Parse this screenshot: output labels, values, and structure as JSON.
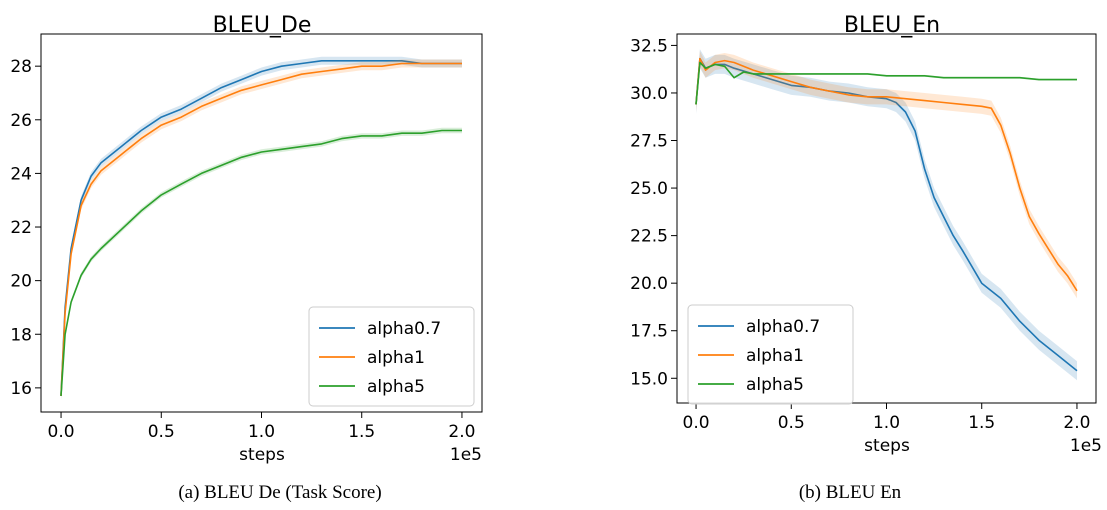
{
  "colors": {
    "alpha0.7": "#1f77b4",
    "alpha1": "#ff7f0e",
    "alpha5": "#2ca02c"
  },
  "chart_data": [
    {
      "type": "line",
      "title": "BLEU_De",
      "caption": "(a) BLEU De (Task Score)",
      "xlabel": "steps",
      "x_offset_label": "1e5",
      "ylabel": "",
      "xlim": [
        -0.1,
        2.1
      ],
      "ylim": [
        15.1,
        29.2
      ],
      "x_ticks": [
        0.0,
        0.5,
        1.0,
        1.5,
        2.0
      ],
      "x_tick_labels": [
        "0.0",
        "0.5",
        "1.0",
        "1.5",
        "2.0"
      ],
      "y_ticks": [
        16,
        18,
        20,
        22,
        24,
        26,
        28
      ],
      "y_tick_labels": [
        "16",
        "18",
        "20",
        "22",
        "24",
        "26",
        "28"
      ],
      "grid": false,
      "legend_position": "lower-right",
      "series": [
        {
          "name": "alpha0.7",
          "x": [
            0.0,
            0.02,
            0.05,
            0.1,
            0.15,
            0.2,
            0.3,
            0.4,
            0.5,
            0.6,
            0.7,
            0.8,
            0.9,
            1.0,
            1.1,
            1.2,
            1.3,
            1.4,
            1.5,
            1.6,
            1.7,
            1.8,
            1.9,
            2.0
          ],
          "y": [
            15.7,
            19.0,
            21.2,
            23.0,
            23.9,
            24.4,
            25.0,
            25.6,
            26.1,
            26.4,
            26.8,
            27.2,
            27.5,
            27.8,
            28.0,
            28.1,
            28.2,
            28.2,
            28.2,
            28.2,
            28.2,
            28.1,
            28.1,
            28.1
          ],
          "band": 0.15
        },
        {
          "name": "alpha1",
          "x": [
            0.0,
            0.02,
            0.05,
            0.1,
            0.15,
            0.2,
            0.3,
            0.4,
            0.5,
            0.6,
            0.7,
            0.8,
            0.9,
            1.0,
            1.1,
            1.2,
            1.3,
            1.4,
            1.5,
            1.6,
            1.7,
            1.8,
            1.9,
            2.0
          ],
          "y": [
            15.7,
            18.8,
            21.0,
            22.8,
            23.6,
            24.1,
            24.7,
            25.3,
            25.8,
            26.1,
            26.5,
            26.8,
            27.1,
            27.3,
            27.5,
            27.7,
            27.8,
            27.9,
            28.0,
            28.0,
            28.1,
            28.1,
            28.1,
            28.1
          ],
          "band": 0.15
        },
        {
          "name": "alpha5",
          "x": [
            0.0,
            0.02,
            0.05,
            0.1,
            0.15,
            0.2,
            0.3,
            0.4,
            0.5,
            0.6,
            0.7,
            0.8,
            0.9,
            1.0,
            1.1,
            1.2,
            1.3,
            1.4,
            1.5,
            1.6,
            1.7,
            1.8,
            1.9,
            2.0
          ],
          "y": [
            15.7,
            18.0,
            19.2,
            20.2,
            20.8,
            21.2,
            21.9,
            22.6,
            23.2,
            23.6,
            24.0,
            24.3,
            24.6,
            24.8,
            24.9,
            25.0,
            25.1,
            25.3,
            25.4,
            25.4,
            25.5,
            25.5,
            25.6,
            25.6
          ],
          "band": 0.1
        }
      ]
    },
    {
      "type": "line",
      "title": "BLEU_En",
      "caption": "(b) BLEU En",
      "xlabel": "steps",
      "x_offset_label": "1e5",
      "ylabel": "",
      "xlim": [
        -0.1,
        2.1
      ],
      "ylim": [
        13.7,
        33.1
      ],
      "x_ticks": [
        0.0,
        0.5,
        1.0,
        1.5,
        2.0
      ],
      "x_tick_labels": [
        "0.0",
        "0.5",
        "1.0",
        "1.5",
        "2.0"
      ],
      "y_ticks": [
        15.0,
        17.5,
        20.0,
        22.5,
        25.0,
        27.5,
        30.0,
        32.5
      ],
      "y_tick_labels": [
        "15.0",
        "17.5",
        "20.0",
        "22.5",
        "25.0",
        "27.5",
        "30.0",
        "32.5"
      ],
      "grid": false,
      "legend_position": "lower-left",
      "series": [
        {
          "name": "alpha0.7",
          "x": [
            0.0,
            0.02,
            0.05,
            0.1,
            0.15,
            0.2,
            0.3,
            0.4,
            0.5,
            0.6,
            0.7,
            0.8,
            0.9,
            1.0,
            1.05,
            1.1,
            1.15,
            1.2,
            1.25,
            1.3,
            1.35,
            1.4,
            1.5,
            1.6,
            1.7,
            1.8,
            1.9,
            2.0
          ],
          "y": [
            29.4,
            31.8,
            31.3,
            31.5,
            31.5,
            31.3,
            31.0,
            30.7,
            30.4,
            30.3,
            30.1,
            30.0,
            29.8,
            29.7,
            29.5,
            29.0,
            28.0,
            26.0,
            24.5,
            23.5,
            22.5,
            21.7,
            20.0,
            19.2,
            18.0,
            17.0,
            16.2,
            15.4
          ],
          "band": 0.5
        },
        {
          "name": "alpha1",
          "x": [
            0.0,
            0.02,
            0.05,
            0.1,
            0.15,
            0.2,
            0.3,
            0.4,
            0.5,
            0.6,
            0.7,
            0.8,
            0.9,
            1.0,
            1.1,
            1.2,
            1.3,
            1.4,
            1.5,
            1.55,
            1.6,
            1.65,
            1.7,
            1.75,
            1.8,
            1.85,
            1.9,
            1.95,
            2.0
          ],
          "y": [
            29.4,
            31.8,
            31.2,
            31.6,
            31.7,
            31.6,
            31.2,
            30.9,
            30.6,
            30.3,
            30.1,
            29.9,
            29.8,
            29.8,
            29.7,
            29.6,
            29.5,
            29.4,
            29.3,
            29.2,
            28.3,
            26.8,
            25.0,
            23.5,
            22.6,
            21.8,
            21.0,
            20.4,
            19.6
          ],
          "band": 0.4
        },
        {
          "name": "alpha5",
          "x": [
            0.0,
            0.02,
            0.05,
            0.1,
            0.15,
            0.2,
            0.25,
            0.3,
            0.4,
            0.5,
            0.6,
            0.7,
            0.8,
            0.9,
            1.0,
            1.1,
            1.2,
            1.3,
            1.4,
            1.5,
            1.6,
            1.7,
            1.8,
            1.9,
            2.0
          ],
          "y": [
            29.4,
            31.6,
            31.3,
            31.5,
            31.4,
            30.8,
            31.1,
            31.0,
            31.0,
            31.0,
            31.0,
            31.0,
            31.0,
            31.0,
            30.9,
            30.9,
            30.9,
            30.8,
            30.8,
            30.8,
            30.8,
            30.8,
            30.7,
            30.7,
            30.7
          ],
          "band": 0.05
        }
      ]
    }
  ]
}
